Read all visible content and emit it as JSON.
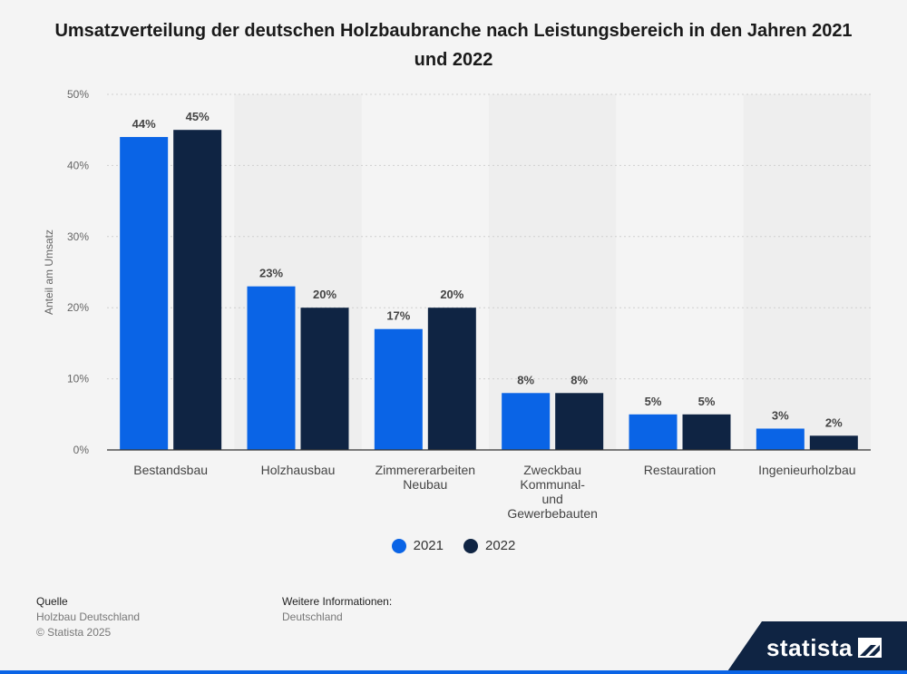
{
  "title": "Umsatzverteilung der deutschen Holzbaubranche nach Leistungsbereich in den Jahren 2021 und 2022",
  "colors": {
    "s2021": "#0a64e6",
    "s2022": "#0f2443",
    "grid": "#cfcfcf",
    "band": "#eaeaea"
  },
  "chart_data": {
    "type": "bar",
    "title": "Umsatzverteilung der deutschen Holzbaubranche nach Leistungsbereich in den Jahren 2021 und 2022",
    "xlabel": "",
    "ylabel": "Anteil am Umsatz",
    "ylim": [
      0,
      50
    ],
    "yticks": [
      0,
      10,
      20,
      30,
      40,
      50
    ],
    "ytick_labels": [
      "0%",
      "10%",
      "20%",
      "30%",
      "40%",
      "50%"
    ],
    "categories": [
      [
        "Bestandsbau"
      ],
      [
        "Holzhausbau"
      ],
      [
        "Zimmererarbeiten",
        "Neubau"
      ],
      [
        "Zweckbau",
        "Kommunal-",
        "und",
        "Gewerbebauten"
      ],
      [
        "Restauration"
      ],
      [
        "Ingenieurholzbau"
      ]
    ],
    "series": [
      {
        "name": "2021",
        "values": [
          44,
          23,
          17,
          8,
          5,
          3
        ],
        "labels": [
          "44%",
          "23%",
          "17%",
          "8%",
          "5%",
          "3%"
        ]
      },
      {
        "name": "2022",
        "values": [
          45,
          20,
          20,
          8,
          5,
          2
        ],
        "labels": [
          "45%",
          "20%",
          "20%",
          "8%",
          "5%",
          "2%"
        ]
      }
    ],
    "legend_position": "bottom-center",
    "grid": true
  },
  "legend": [
    "2021",
    "2022"
  ],
  "footer": {
    "source_head": "Quelle",
    "source_lines": [
      "Holzbau Deutschland",
      "© Statista 2025"
    ],
    "info_head": "Weitere Informationen:",
    "info_lines": [
      "Deutschland"
    ]
  },
  "brand": {
    "name": "statista",
    "icon": "statista-logo-icon"
  }
}
